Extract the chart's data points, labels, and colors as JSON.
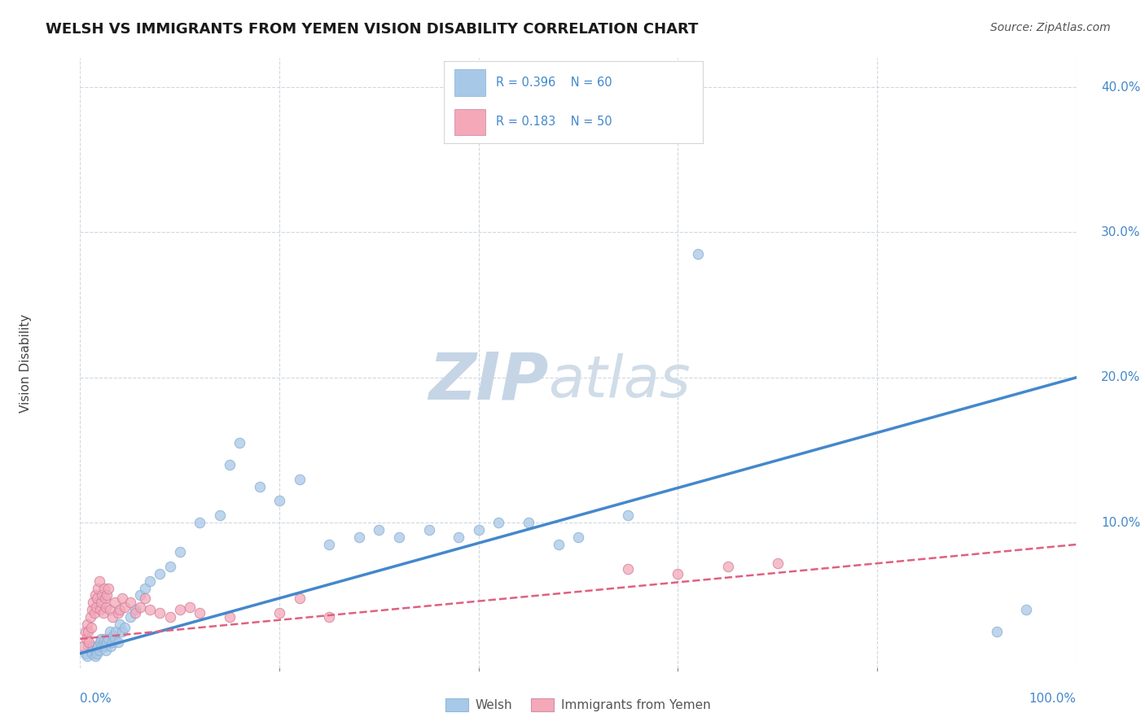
{
  "title": "WELSH VS IMMIGRANTS FROM YEMEN VISION DISABILITY CORRELATION CHART",
  "source": "Source: ZipAtlas.com",
  "ylabel": "Vision Disability",
  "xlim": [
    0,
    1.0
  ],
  "ylim": [
    0,
    0.42
  ],
  "xticks": [
    0.0,
    0.2,
    0.4,
    0.6,
    0.8,
    1.0
  ],
  "xticklabels": [
    "0.0%",
    "",
    "",
    "",
    "",
    "100.0%"
  ],
  "yticks": [
    0.0,
    0.1,
    0.2,
    0.3,
    0.4
  ],
  "yticklabels": [
    "",
    "10.0%",
    "20.0%",
    "30.0%",
    "40.0%"
  ],
  "welsh_color": "#a8c8e8",
  "yemen_color": "#f4a8b8",
  "welsh_line_color": "#4488cc",
  "yemen_line_color": "#e06080",
  "background_color": "#ffffff",
  "watermark_zip": "ZIP",
  "watermark_atlas": "atlas",
  "legend_R_welsh": "R = 0.396",
  "legend_N_welsh": "N = 60",
  "legend_R_yemen": "R = 0.183",
  "legend_N_yemen": "N = 50",
  "welsh_scatter_x": [
    0.005,
    0.007,
    0.008,
    0.01,
    0.012,
    0.013,
    0.015,
    0.016,
    0.017,
    0.018,
    0.019,
    0.02,
    0.021,
    0.022,
    0.023,
    0.024,
    0.025,
    0.026,
    0.027,
    0.028,
    0.03,
    0.031,
    0.032,
    0.033,
    0.035,
    0.036,
    0.038,
    0.04,
    0.042,
    0.045,
    0.05,
    0.055,
    0.06,
    0.065,
    0.07,
    0.08,
    0.09,
    0.1,
    0.12,
    0.14,
    0.15,
    0.16,
    0.18,
    0.2,
    0.22,
    0.25,
    0.28,
    0.3,
    0.32,
    0.35,
    0.38,
    0.4,
    0.42,
    0.45,
    0.48,
    0.5,
    0.55,
    0.62,
    0.92,
    0.95
  ],
  "welsh_scatter_y": [
    0.01,
    0.008,
    0.015,
    0.012,
    0.01,
    0.015,
    0.008,
    0.012,
    0.01,
    0.015,
    0.012,
    0.018,
    0.02,
    0.015,
    0.018,
    0.02,
    0.015,
    0.012,
    0.018,
    0.02,
    0.025,
    0.015,
    0.018,
    0.022,
    0.02,
    0.025,
    0.018,
    0.03,
    0.025,
    0.028,
    0.035,
    0.04,
    0.05,
    0.055,
    0.06,
    0.065,
    0.07,
    0.08,
    0.1,
    0.105,
    0.14,
    0.155,
    0.125,
    0.115,
    0.13,
    0.085,
    0.09,
    0.095,
    0.09,
    0.095,
    0.09,
    0.095,
    0.1,
    0.1,
    0.085,
    0.09,
    0.105,
    0.285,
    0.025,
    0.04
  ],
  "yemen_scatter_x": [
    0.003,
    0.005,
    0.006,
    0.007,
    0.008,
    0.009,
    0.01,
    0.011,
    0.012,
    0.013,
    0.014,
    0.015,
    0.016,
    0.017,
    0.018,
    0.019,
    0.02,
    0.021,
    0.022,
    0.023,
    0.024,
    0.025,
    0.026,
    0.027,
    0.028,
    0.03,
    0.032,
    0.035,
    0.038,
    0.04,
    0.042,
    0.045,
    0.05,
    0.055,
    0.06,
    0.065,
    0.07,
    0.08,
    0.09,
    0.1,
    0.11,
    0.12,
    0.15,
    0.2,
    0.22,
    0.25,
    0.55,
    0.6,
    0.65,
    0.7
  ],
  "yemen_scatter_y": [
    0.015,
    0.025,
    0.02,
    0.03,
    0.025,
    0.018,
    0.035,
    0.028,
    0.04,
    0.045,
    0.038,
    0.05,
    0.042,
    0.048,
    0.055,
    0.06,
    0.04,
    0.045,
    0.05,
    0.038,
    0.055,
    0.048,
    0.042,
    0.05,
    0.055,
    0.04,
    0.035,
    0.045,
    0.038,
    0.04,
    0.048,
    0.042,
    0.045,
    0.038,
    0.042,
    0.048,
    0.04,
    0.038,
    0.035,
    0.04,
    0.042,
    0.038,
    0.035,
    0.038,
    0.048,
    0.035,
    0.068,
    0.065,
    0.07,
    0.072
  ],
  "welsh_trend": [
    0.01,
    0.2
  ],
  "yemen_trend": [
    0.02,
    0.085
  ],
  "grid_color": "#d0d8e0",
  "title_fontsize": 13,
  "axis_label_fontsize": 11,
  "tick_fontsize": 11,
  "legend_fontsize": 11,
  "source_fontsize": 10,
  "watermark_color_zip": "#c5d5e5",
  "watermark_color_atlas": "#d0dce8",
  "watermark_fontsize": 58
}
